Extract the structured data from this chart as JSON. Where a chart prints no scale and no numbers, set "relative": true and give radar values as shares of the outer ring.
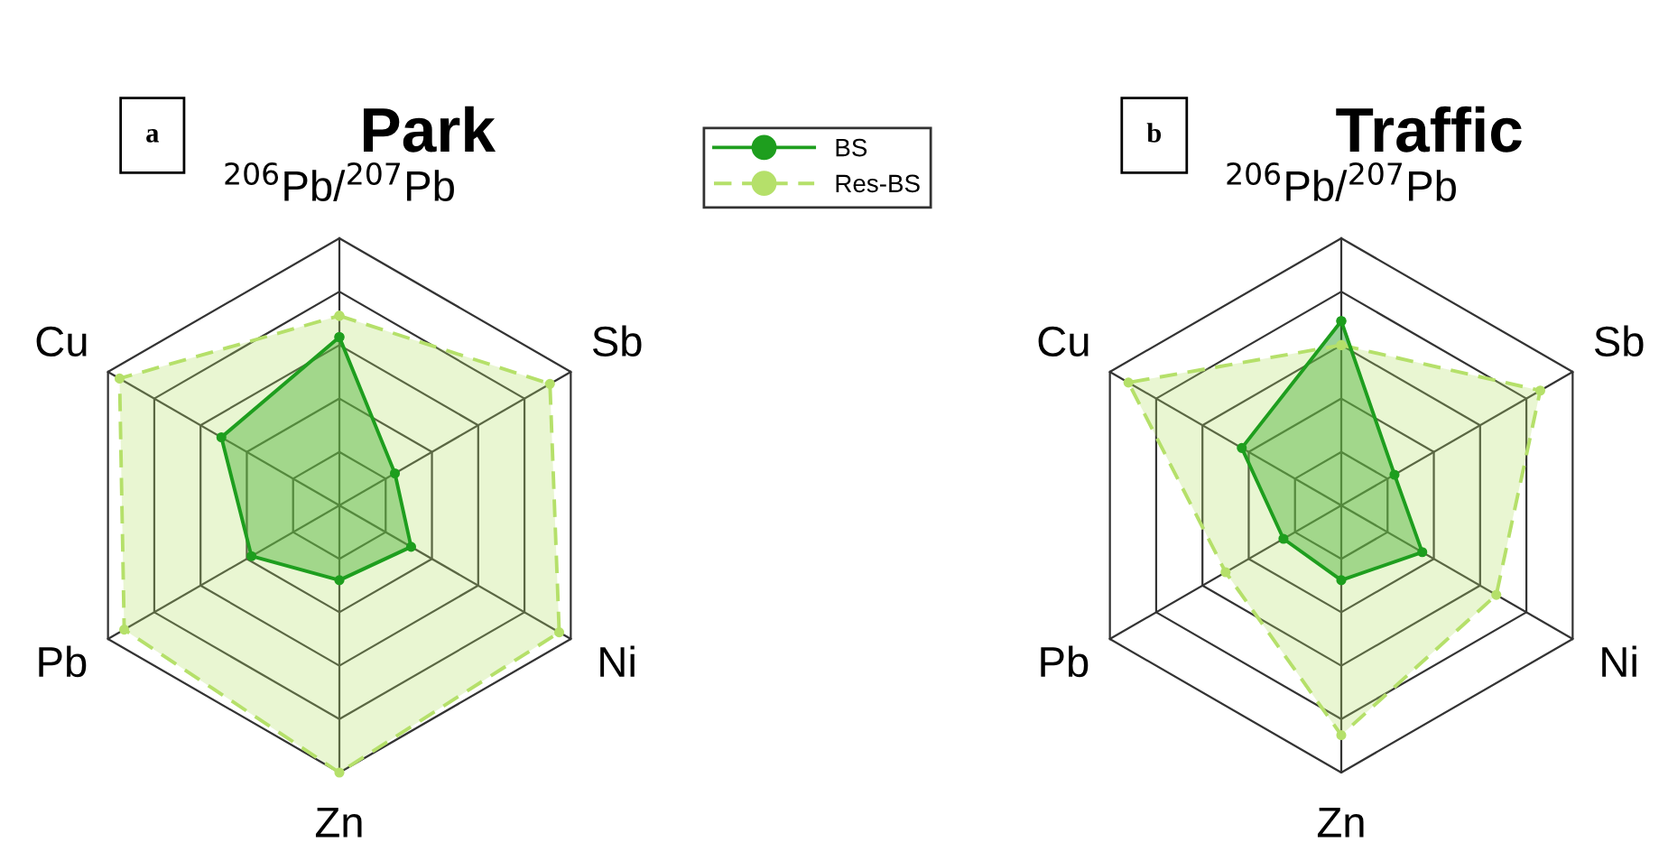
{
  "chart_data": [
    {
      "type": "radar",
      "title": "Park",
      "annotations": [
        "a"
      ],
      "relative": true,
      "grid": true,
      "legend": "top right",
      "marker": "circle",
      "categories": [
        "$^{206}$Pb/$^{207}$Pb",
        "Sb",
        "Ni",
        "Zn",
        "Pb",
        "Cu"
      ],
      "series": [
        {
          "name": "BS",
          "color": "#1e9e1e",
          "line_style": "solid",
          "values": [
            0.63,
            0.24,
            0.31,
            0.28,
            0.38,
            0.51
          ]
        },
        {
          "name": "Res-BS",
          "color": "#b5e06a",
          "line_style": "dashed",
          "values": [
            0.71,
            0.91,
            0.95,
            1.0,
            0.93,
            0.95
          ]
        }
      ]
    },
    {
      "type": "radar",
      "title": "Traffic",
      "annotations": [
        "b"
      ],
      "relative": true,
      "grid": true,
      "marker": "circle",
      "categories": [
        "$^{206}$Pb/$^{207}$Pb",
        "Sb",
        "Ni",
        "Zn",
        "Pb",
        "Cu"
      ],
      "series": [
        {
          "color": "#1e9e1e",
          "line_style": "solid",
          "values": [
            0.69,
            0.23,
            0.35,
            0.28,
            0.25,
            0.43
          ]
        },
        {
          "color": "#b5e06a",
          "line_style": "dashed",
          "values": [
            0.6,
            0.86,
            0.67,
            0.86,
            0.5,
            0.92
          ]
        }
      ]
    }
  ]
}
